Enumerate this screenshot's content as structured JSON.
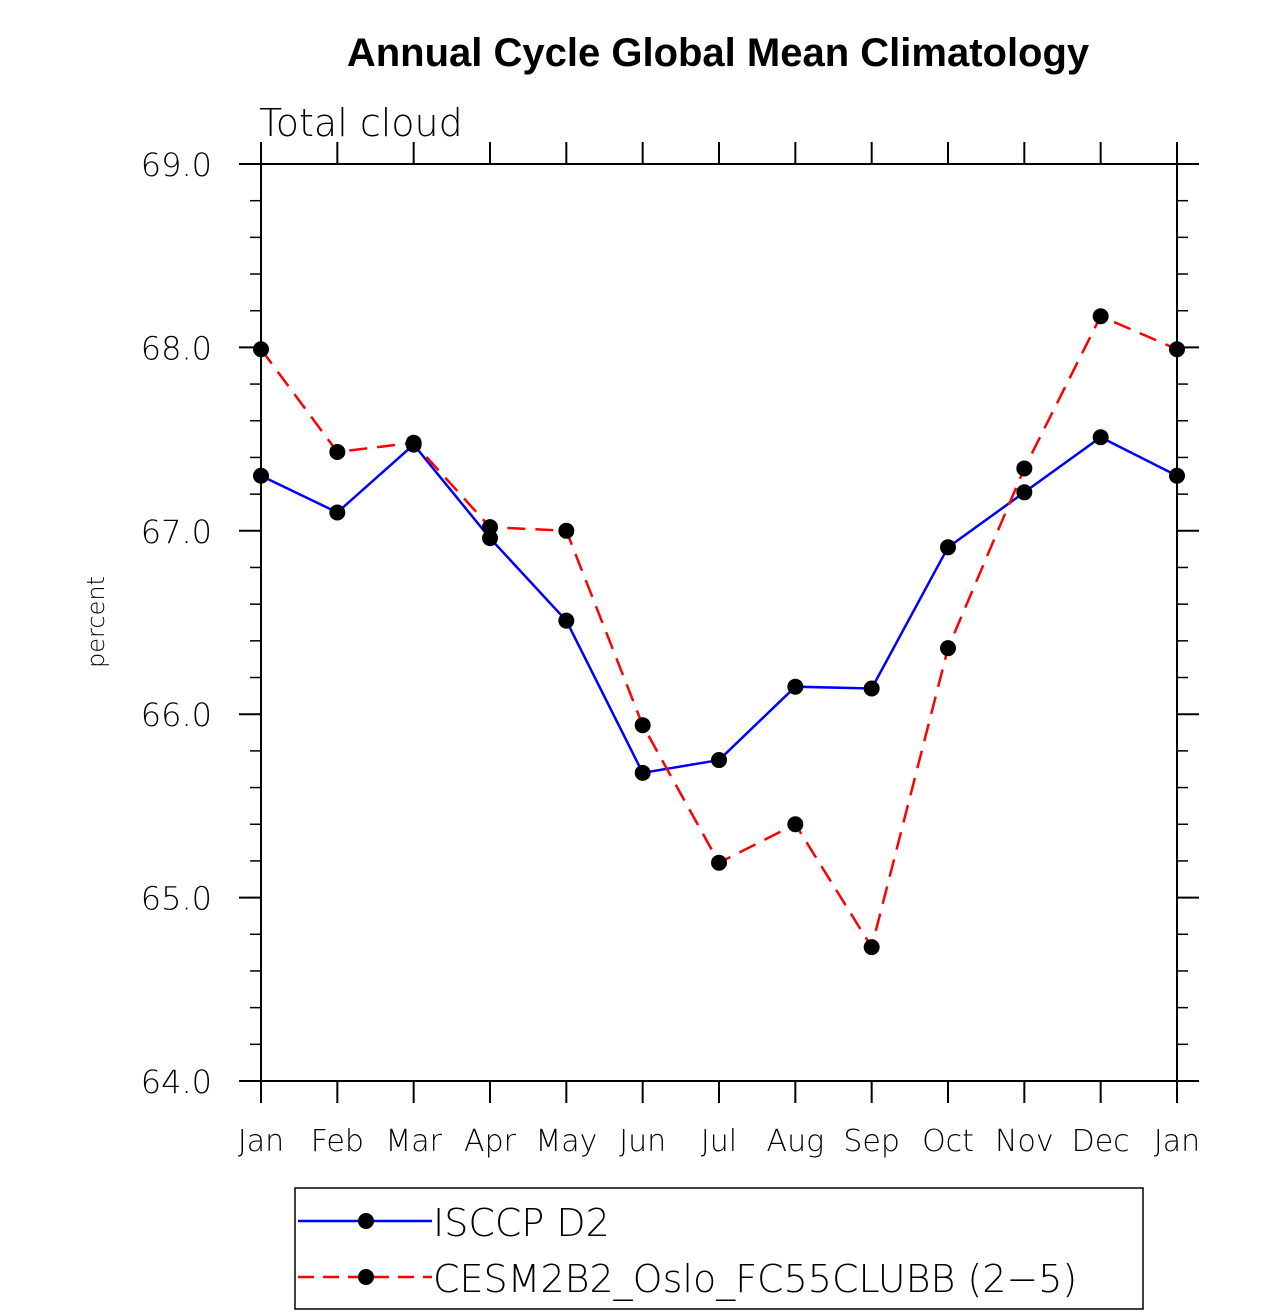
{
  "chart_data": {
    "type": "line",
    "title": "Annual Cycle Global Mean Climatology",
    "subtitle": "Total cloud",
    "xlabel": "",
    "ylabel": "percent",
    "ylim": [
      64.0,
      69.0
    ],
    "yticks": [
      "64.0",
      "65.0",
      "66.0",
      "67.0",
      "68.0",
      "69.0"
    ],
    "yminor_step": 0.2,
    "categories": [
      "Jan",
      "Feb",
      "Mar",
      "Apr",
      "May",
      "Jun",
      "Jul",
      "Aug",
      "Sep",
      "Oct",
      "Nov",
      "Dec",
      "Jan"
    ],
    "grid": false,
    "legend_position": "bottom",
    "series": [
      {
        "name": "ISCCP D2",
        "color": "#0000ff",
        "dash": "solid",
        "marker": "filled-circle",
        "values": [
          67.3,
          67.1,
          67.47,
          66.96,
          66.51,
          65.68,
          65.75,
          66.15,
          66.14,
          66.91,
          67.21,
          67.51,
          67.3
        ]
      },
      {
        "name": "CESM2B2_Oslo_FC55CLUBB (2−5)",
        "color": "#ff0000",
        "dash": "dashed",
        "marker": "filled-circle",
        "values": [
          67.99,
          67.43,
          67.48,
          67.02,
          67.0,
          65.94,
          65.19,
          65.4,
          64.73,
          66.36,
          67.34,
          68.17,
          67.99
        ]
      }
    ]
  }
}
